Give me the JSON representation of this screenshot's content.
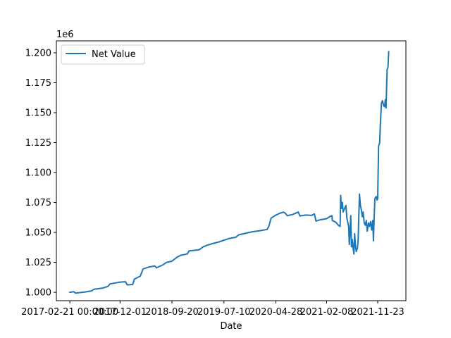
{
  "chart_data": {
    "type": "line",
    "title": "",
    "xlabel": "Date",
    "ylabel": "",
    "y_offset_text": "1e6",
    "legend_position": "upper-left",
    "grid": false,
    "colors": {
      "line": "#1f77b4",
      "axis": "#000000"
    },
    "x_tick_labels": [
      "2017-02-21 00:00:00",
      "2017-12-01",
      "2018-09-20",
      "2019-07-10",
      "2020-04-28",
      "2021-02-08",
      "2021-11-23"
    ],
    "y_tick_labels": [
      "1.000",
      "1.025",
      "1.050",
      "1.075",
      "1.100",
      "1.125",
      "1.150",
      "1.175",
      "1.200"
    ],
    "y_ticks": [
      1000000,
      1025000,
      1050000,
      1075000,
      1100000,
      1125000,
      1150000,
      1175000,
      1200000
    ],
    "ylim": [
      993000,
      1210000
    ],
    "xlim": [
      "2016-12-07",
      "2022-05-01"
    ],
    "series": [
      {
        "name": "Net Value",
        "points": [
          [
            "2017-02-21",
            1000000
          ],
          [
            "2017-03-15",
            1000500
          ],
          [
            "2017-03-25",
            999300
          ],
          [
            "2017-05-15",
            1000200
          ],
          [
            "2017-06-25",
            1001200
          ],
          [
            "2017-07-05",
            1002500
          ],
          [
            "2017-08-25",
            1003500
          ],
          [
            "2017-09-25",
            1005000
          ],
          [
            "2017-10-05",
            1007000
          ],
          [
            "2017-12-01",
            1008500
          ],
          [
            "2018-01-01",
            1008800
          ],
          [
            "2018-01-10",
            1006200
          ],
          [
            "2018-02-10",
            1006500
          ],
          [
            "2018-02-20",
            1011000
          ],
          [
            "2018-03-25",
            1013500
          ],
          [
            "2018-04-10",
            1019500
          ],
          [
            "2018-05-10",
            1021000
          ],
          [
            "2018-06-15",
            1022000
          ],
          [
            "2018-06-25",
            1020500
          ],
          [
            "2018-08-01",
            1023000
          ],
          [
            "2018-08-20",
            1025000
          ],
          [
            "2018-09-20",
            1026000
          ],
          [
            "2018-10-20",
            1029500
          ],
          [
            "2018-11-10",
            1031000
          ],
          [
            "2018-12-15",
            1032000
          ],
          [
            "2018-12-25",
            1034500
          ],
          [
            "2019-02-20",
            1035500
          ],
          [
            "2019-03-15",
            1038000
          ],
          [
            "2019-04-10",
            1039500
          ],
          [
            "2019-05-15",
            1041000
          ],
          [
            "2019-06-10",
            1042000
          ],
          [
            "2019-07-10",
            1043500
          ],
          [
            "2019-08-10",
            1045000
          ],
          [
            "2019-09-15",
            1046000
          ],
          [
            "2019-10-01",
            1048000
          ],
          [
            "2019-11-01",
            1049000
          ],
          [
            "2019-12-15",
            1050500
          ],
          [
            "2020-02-01",
            1051500
          ],
          [
            "2020-03-10",
            1052500
          ],
          [
            "2020-03-20",
            1055500
          ],
          [
            "2020-04-01",
            1062000
          ],
          [
            "2020-04-28",
            1064500
          ],
          [
            "2020-05-20",
            1066000
          ],
          [
            "2020-06-10",
            1067000
          ],
          [
            "2020-06-20",
            1066000
          ],
          [
            "2020-07-01",
            1064000
          ],
          [
            "2020-08-01",
            1065000
          ],
          [
            "2020-09-01",
            1067000
          ],
          [
            "2020-09-10",
            1063800
          ],
          [
            "2020-10-15",
            1064500
          ],
          [
            "2020-11-15",
            1064200
          ],
          [
            "2020-12-01",
            1065500
          ],
          [
            "2020-12-10",
            1059500
          ],
          [
            "2021-01-01",
            1060500
          ],
          [
            "2021-02-08",
            1061500
          ],
          [
            "2021-03-01",
            1063500
          ],
          [
            "2021-03-10",
            1064000
          ],
          [
            "2021-03-12",
            1060000
          ],
          [
            "2021-04-01",
            1058500
          ],
          [
            "2021-04-15",
            1056000
          ],
          [
            "2021-04-25",
            1055000
          ],
          [
            "2021-04-28",
            1081000
          ],
          [
            "2021-05-03",
            1070000
          ],
          [
            "2021-05-08",
            1075000
          ],
          [
            "2021-05-12",
            1067000
          ],
          [
            "2021-05-20",
            1070000
          ],
          [
            "2021-05-28",
            1072500
          ],
          [
            "2021-06-02",
            1062000
          ],
          [
            "2021-06-08",
            1058000
          ],
          [
            "2021-06-12",
            1055000
          ],
          [
            "2021-06-16",
            1040000
          ],
          [
            "2021-06-20",
            1052000
          ],
          [
            "2021-06-24",
            1064000
          ],
          [
            "2021-06-28",
            1038000
          ],
          [
            "2021-07-03",
            1044000
          ],
          [
            "2021-07-08",
            1036000
          ],
          [
            "2021-07-12",
            1032000
          ],
          [
            "2021-07-16",
            1049000
          ],
          [
            "2021-07-20",
            1040000
          ],
          [
            "2021-07-25",
            1034000
          ],
          [
            "2021-08-01",
            1037000
          ],
          [
            "2021-08-05",
            1045000
          ],
          [
            "2021-08-12",
            1082000
          ],
          [
            "2021-08-18",
            1072000
          ],
          [
            "2021-08-24",
            1068000
          ],
          [
            "2021-08-28",
            1063000
          ],
          [
            "2021-09-02",
            1067000
          ],
          [
            "2021-09-08",
            1058000
          ],
          [
            "2021-09-14",
            1056000
          ],
          [
            "2021-09-20",
            1060000
          ],
          [
            "2021-09-25",
            1051000
          ],
          [
            "2021-10-02",
            1058000
          ],
          [
            "2021-10-08",
            1055000
          ],
          [
            "2021-10-14",
            1059000
          ],
          [
            "2021-10-20",
            1052000
          ],
          [
            "2021-10-26",
            1060000
          ],
          [
            "2021-10-30",
            1043000
          ],
          [
            "2021-11-03",
            1062000
          ],
          [
            "2021-11-07",
            1078000
          ],
          [
            "2021-11-14",
            1080000
          ],
          [
            "2021-11-20",
            1077000
          ],
          [
            "2021-11-23",
            1078500
          ],
          [
            "2021-11-28",
            1122000
          ],
          [
            "2021-12-04",
            1125000
          ],
          [
            "2021-12-08",
            1140000
          ],
          [
            "2021-12-14",
            1158000
          ],
          [
            "2021-12-20",
            1160000
          ],
          [
            "2021-12-26",
            1156000
          ],
          [
            "2022-01-01",
            1155000
          ],
          [
            "2022-01-05",
            1161000
          ],
          [
            "2022-01-09",
            1154000
          ],
          [
            "2022-01-12",
            1170000
          ],
          [
            "2022-01-15",
            1186000
          ],
          [
            "2022-01-20",
            1188000
          ],
          [
            "2022-01-24",
            1201000
          ]
        ]
      }
    ]
  }
}
